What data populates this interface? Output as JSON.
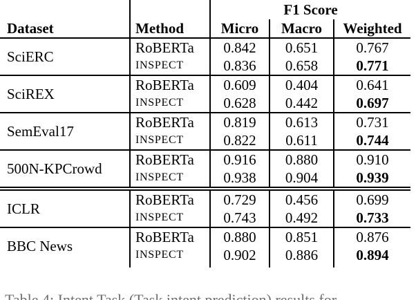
{
  "table": {
    "f1_group_header": "F1 Score",
    "columns": {
      "dataset": "Dataset",
      "method": "Method",
      "micro": "Micro",
      "macro": "Macro",
      "weighted": "Weighted"
    },
    "groups": [
      {
        "dataset": "SciERC",
        "separator": "none",
        "rows": [
          {
            "method": "RoBERTa",
            "smallcaps": false,
            "micro": "0.842",
            "macro": "0.651",
            "weighted": "0.767",
            "weighted_bold": false
          },
          {
            "method": "INSPECT",
            "smallcaps": true,
            "micro": "0.836",
            "macro": "0.658",
            "weighted": "0.771",
            "weighted_bold": true
          }
        ]
      },
      {
        "dataset": "SciREX",
        "separator": "single",
        "rows": [
          {
            "method": "RoBERTa",
            "smallcaps": false,
            "micro": "0.609",
            "macro": "0.404",
            "weighted": "0.641",
            "weighted_bold": false
          },
          {
            "method": "INSPECT",
            "smallcaps": true,
            "micro": "0.628",
            "macro": "0.442",
            "weighted": "0.697",
            "weighted_bold": true
          }
        ]
      },
      {
        "dataset": "SemEval17",
        "separator": "single",
        "rows": [
          {
            "method": "RoBERTa",
            "smallcaps": false,
            "micro": "0.819",
            "macro": "0.613",
            "weighted": "0.731",
            "weighted_bold": false
          },
          {
            "method": "INSPECT",
            "smallcaps": true,
            "micro": "0.822",
            "macro": "0.611",
            "weighted": "0.744",
            "weighted_bold": true
          }
        ]
      },
      {
        "dataset": "500N-KPCrowd",
        "separator": "single",
        "rows": [
          {
            "method": "RoBERTa",
            "smallcaps": false,
            "micro": "0.916",
            "macro": "0.880",
            "weighted": "0.910",
            "weighted_bold": false
          },
          {
            "method": "INSPECT",
            "smallcaps": true,
            "micro": "0.938",
            "macro": "0.904",
            "weighted": "0.939",
            "weighted_bold": true
          }
        ]
      },
      {
        "dataset": "ICLR",
        "separator": "double",
        "rows": [
          {
            "method": "RoBERTa",
            "smallcaps": false,
            "micro": "0.729",
            "macro": "0.456",
            "weighted": "0.699",
            "weighted_bold": false
          },
          {
            "method": "INSPECT",
            "smallcaps": true,
            "micro": "0.743",
            "macro": "0.492",
            "weighted": "0.733",
            "weighted_bold": true
          }
        ]
      },
      {
        "dataset": "BBC News",
        "separator": "single",
        "rows": [
          {
            "method": "RoBERTa",
            "smallcaps": false,
            "micro": "0.880",
            "macro": "0.851",
            "weighted": "0.876",
            "weighted_bold": false
          },
          {
            "method": "INSPECT",
            "smallcaps": true,
            "micro": "0.902",
            "macro": "0.886",
            "weighted": "0.894",
            "weighted_bold": true
          }
        ]
      }
    ],
    "caption_fragment": "Table 4: Intent Task (Task intent prediction) results for"
  }
}
